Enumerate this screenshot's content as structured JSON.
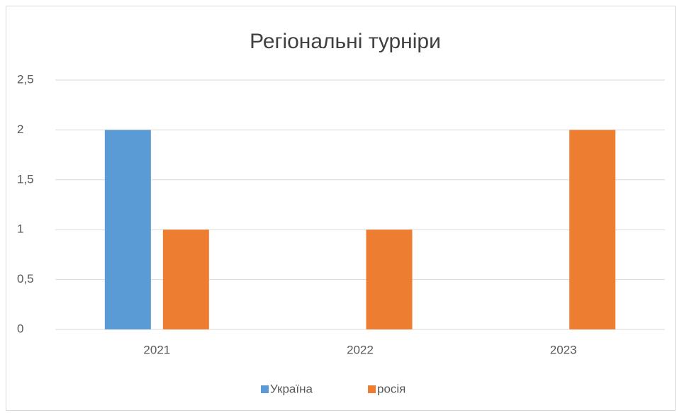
{
  "chart_data": {
    "type": "bar",
    "title": "Регіональні турніри",
    "categories": [
      "2021",
      "2022",
      "2023"
    ],
    "series": [
      {
        "name": "Україна",
        "color": "#5b9bd5",
        "values": [
          2,
          0,
          0
        ]
      },
      {
        "name": "росія",
        "color": "#ed7d31",
        "values": [
          1,
          1,
          2
        ]
      }
    ],
    "ylim": [
      0,
      2.5
    ],
    "yticks": [
      0,
      {
        "value": 0.5,
        "label": "0,5"
      },
      1,
      {
        "value": 1.5,
        "label": "1,5"
      },
      2,
      {
        "value": 2.5,
        "label": "2,5"
      }
    ],
    "grid": true,
    "legend": "bottom"
  }
}
